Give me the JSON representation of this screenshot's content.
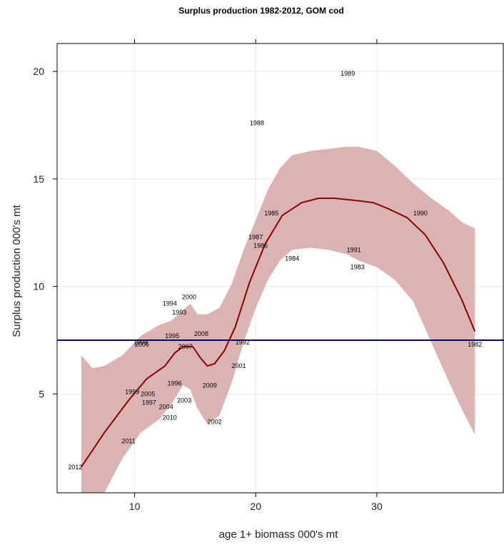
{
  "chart_data": {
    "type": "scatter",
    "title": "Surplus production 1982-2012, GOM cod",
    "xlabel": "age 1+ biomass 000's mt",
    "ylabel": "Surplus production 000's mt",
    "xlim": [
      3.6,
      40.5
    ],
    "ylim": [
      0.4,
      21.3
    ],
    "x_ticks": [
      10,
      20,
      30
    ],
    "y_ticks": [
      5,
      10,
      15,
      20
    ],
    "x_tick_labels": [
      "10",
      "20",
      "30"
    ],
    "y_tick_labels": [
      "5",
      "10",
      "15",
      "20"
    ],
    "grid": true,
    "reference_line": {
      "y": 7.5,
      "color": "#000080"
    },
    "points": [
      {
        "year": "1982",
        "x": 38.1,
        "y": 7.3
      },
      {
        "year": "1983",
        "x": 28.4,
        "y": 10.9
      },
      {
        "year": "1984",
        "x": 23.0,
        "y": 11.3
      },
      {
        "year": "1985",
        "x": 21.3,
        "y": 13.4
      },
      {
        "year": "1986",
        "x": 20.4,
        "y": 11.9
      },
      {
        "year": "1987",
        "x": 20.0,
        "y": 12.3
      },
      {
        "year": "1988",
        "x": 20.1,
        "y": 17.6
      },
      {
        "year": "1989",
        "x": 27.6,
        "y": 19.9
      },
      {
        "year": "1990",
        "x": 33.6,
        "y": 13.4
      },
      {
        "year": "1991",
        "x": 28.1,
        "y": 11.7
      },
      {
        "year": "1992",
        "x": 18.9,
        "y": 7.4
      },
      {
        "year": "1993",
        "x": 13.7,
        "y": 8.8
      },
      {
        "year": "1994",
        "x": 12.9,
        "y": 9.2
      },
      {
        "year": "1995",
        "x": 13.1,
        "y": 7.7
      },
      {
        "year": "1996",
        "x": 13.3,
        "y": 5.5
      },
      {
        "year": "1997",
        "x": 11.2,
        "y": 4.6
      },
      {
        "year": "1998",
        "x": 10.5,
        "y": 7.4
      },
      {
        "year": "1999",
        "x": 9.8,
        "y": 5.1
      },
      {
        "year": "2000",
        "x": 14.5,
        "y": 9.5
      },
      {
        "year": "2001",
        "x": 18.6,
        "y": 6.3
      },
      {
        "year": "2002",
        "x": 16.6,
        "y": 3.7
      },
      {
        "year": "2003",
        "x": 14.1,
        "y": 4.7
      },
      {
        "year": "2004",
        "x": 12.6,
        "y": 4.4
      },
      {
        "year": "2005",
        "x": 11.1,
        "y": 5.0
      },
      {
        "year": "2006",
        "x": 10.6,
        "y": 7.3
      },
      {
        "year": "2007",
        "x": 14.2,
        "y": 7.2
      },
      {
        "year": "2008",
        "x": 15.5,
        "y": 7.8
      },
      {
        "year": "2009",
        "x": 16.2,
        "y": 5.4
      },
      {
        "year": "2010",
        "x": 12.9,
        "y": 3.9
      },
      {
        "year": "2011",
        "x": 9.5,
        "y": 2.8
      },
      {
        "year": "2012",
        "x": 5.1,
        "y": 1.6
      }
    ],
    "smooth_fit": {
      "color": "#8b0000",
      "x": [
        5.6,
        7.5,
        9.5,
        11.0,
        12.5,
        13.3,
        14.0,
        14.8,
        15.4,
        16.0,
        16.6,
        17.4,
        18.3,
        19.5,
        20.8,
        22.2,
        23.8,
        25.2,
        26.5,
        28.2,
        29.7,
        31.0,
        32.5,
        34.0,
        35.5,
        37.0,
        38.1
      ],
      "y": [
        1.6,
        3.2,
        4.7,
        5.7,
        6.3,
        6.9,
        7.2,
        7.2,
        6.7,
        6.3,
        6.4,
        7.0,
        8.1,
        10.2,
        12.0,
        13.3,
        13.9,
        14.1,
        14.1,
        14.0,
        13.9,
        13.6,
        13.2,
        12.4,
        11.1,
        9.4,
        7.9
      ]
    },
    "confidence_band": {
      "color": "#dcb3b3",
      "x": [
        5.6,
        6.5,
        7.5,
        9.0,
        10.5,
        12.0,
        13.0,
        14.0,
        14.6,
        15.2,
        16.0,
        17.0,
        18.0,
        19.0,
        20.0,
        21.0,
        22.0,
        23.0,
        24.5,
        26.0,
        27.5,
        28.5,
        30.0,
        31.5,
        33.0,
        34.5,
        36.0,
        37.0,
        38.1
      ],
      "upper": [
        6.8,
        6.2,
        6.3,
        6.8,
        7.7,
        8.2,
        8.4,
        8.9,
        9.2,
        8.7,
        8.7,
        9.0,
        10.1,
        11.7,
        13.1,
        14.5,
        15.5,
        16.1,
        16.3,
        16.4,
        16.5,
        16.5,
        16.3,
        15.6,
        14.8,
        14.1,
        13.5,
        13.0,
        12.7
      ],
      "lower": [
        0.4,
        0.4,
        0.4,
        2.0,
        3.2,
        3.8,
        4.5,
        5.4,
        5.2,
        4.3,
        3.6,
        4.0,
        5.5,
        7.4,
        9.0,
        10.3,
        11.2,
        11.7,
        11.8,
        11.7,
        11.5,
        11.2,
        10.9,
        10.3,
        9.3,
        7.4,
        5.5,
        4.3,
        3.1
      ]
    }
  }
}
